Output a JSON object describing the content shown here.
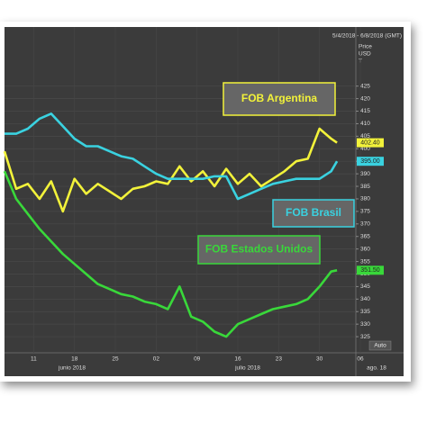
{
  "chart_data": {
    "type": "line",
    "subtitle": "5/4/2018 - 6/8/2018 (GMT)",
    "y_axis_label": [
      "Price",
      "USD",
      "T"
    ],
    "x": [
      6,
      8,
      10,
      12,
      14,
      16,
      18,
      20,
      22,
      24,
      26,
      28,
      30,
      32,
      34,
      36,
      38,
      40,
      42,
      44,
      46,
      48,
      50,
      52,
      54,
      56,
      58,
      60,
      62,
      63
    ],
    "xlim": [
      6,
      67
    ],
    "xticks": [
      {
        "value": 11,
        "label": "11"
      },
      {
        "value": 18,
        "label": "18"
      },
      {
        "value": 25,
        "label": "25"
      },
      {
        "value": 32,
        "label": "02"
      },
      {
        "value": 39,
        "label": "09"
      },
      {
        "value": 46,
        "label": "16"
      },
      {
        "value": 53,
        "label": "23"
      },
      {
        "value": 60,
        "label": "30"
      },
      {
        "value": 67,
        "label": "06"
      }
    ],
    "month_labels": [
      "junio 2018",
      "julio 2018",
      "ago. 18"
    ],
    "ylim": [
      320,
      445
    ],
    "yticks": [
      325,
      330,
      335,
      340,
      345,
      350,
      355,
      360,
      365,
      370,
      375,
      380,
      385,
      390,
      395,
      400,
      405,
      410,
      415,
      420,
      425
    ],
    "grid": true,
    "button": "Auto",
    "series": [
      {
        "name": "FOB Argentina",
        "color": "#f2f23a",
        "values": [
          399,
          384,
          386,
          380,
          387,
          375,
          388,
          382,
          386,
          383,
          380,
          384,
          385,
          387,
          386,
          393,
          387,
          391,
          385,
          392,
          386,
          390,
          385,
          388,
          391,
          395,
          396,
          408,
          404,
          402.4
        ],
        "last_label": "402.40"
      },
      {
        "name": "FOB Brasil",
        "color": "#3ad2e0",
        "values": [
          406,
          406,
          408,
          412,
          414,
          409,
          404,
          401,
          401,
          399,
          397,
          396,
          393,
          390,
          388,
          388,
          388,
          388,
          389,
          389,
          380,
          382,
          384,
          386,
          387,
          388,
          388,
          388,
          391,
          395
        ],
        "last_label": "395.00"
      },
      {
        "name": "FOB Estados Unidos",
        "color": "#39d83a",
        "values": [
          391,
          380,
          374,
          368,
          363,
          358,
          354,
          350,
          346,
          344,
          342,
          341,
          339,
          338,
          336,
          345,
          333,
          331,
          327,
          325,
          330,
          332,
          334,
          336,
          337,
          338,
          340,
          345,
          351,
          351.5
        ],
        "last_label": "351.50"
      }
    ]
  }
}
